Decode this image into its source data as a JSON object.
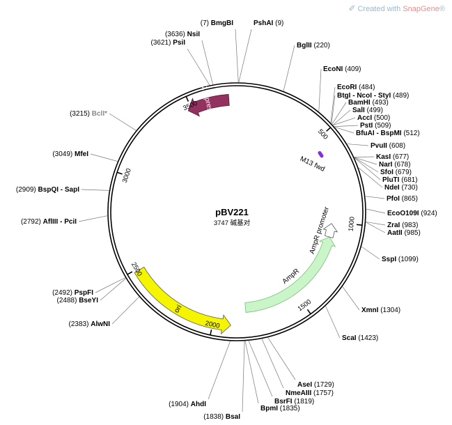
{
  "watermark": {
    "prefix": "Created with ",
    "brand": "SnapGene",
    "suffix": "®"
  },
  "plasmid": {
    "name": "pBV221",
    "length": "3747",
    "unit": "碱基对",
    "size_label": "3747 碱基对"
  },
  "colors": {
    "repressor": "#93315f",
    "ori": "#f5f500",
    "ampr": "#c9f5c9",
    "ampr_stroke": "#7bbf7b",
    "m13": "#8a2be2",
    "backbone": "#000000",
    "grey_label": "#8a8a8a",
    "watermark": "#9db8d0",
    "watermark_brand": "#f08c8c"
  },
  "ticks": [
    500,
    1000,
    1500,
    2000,
    2500,
    3000,
    3500
  ],
  "features": [
    {
      "name": "λ repressor",
      "start": 3480,
      "end": 3705,
      "strand": -1,
      "kind": "cds",
      "color": "#93315f"
    },
    {
      "name": "ori",
      "start": 1905,
      "end": 2490,
      "strand": -1,
      "kind": "ori",
      "color": "#f5f500"
    },
    {
      "name": "AmpR",
      "start": 1095,
      "end": 1820,
      "strand": -1,
      "kind": "cds",
      "color": "#c9f5c9"
    },
    {
      "name": "AmpR promoter",
      "start": 1010,
      "end": 1095,
      "strand": -1,
      "kind": "promoter",
      "color": "#ffffff"
    },
    {
      "name": "M13 fwd",
      "start": 568,
      "end": 590,
      "strand": 1,
      "kind": "primer",
      "color": "#8a2be2"
    }
  ],
  "sites": [
    {
      "name": "BmgBI",
      "pos": "(7)",
      "side": "left",
      "bp": 7
    },
    {
      "name": "PshAI",
      "pos": "(9)",
      "side": "right",
      "bp": 9
    },
    {
      "name": "NsiI",
      "pos": "(3636)",
      "side": "left",
      "bp": 3636
    },
    {
      "name": "PsiI",
      "pos": "(3621)",
      "side": "left",
      "bp": 3621
    },
    {
      "name": "BglII",
      "pos": "(220)",
      "side": "right",
      "bp": 220
    },
    {
      "name": "EcoNI",
      "pos": "(409)",
      "side": "right",
      "bp": 409
    },
    {
      "name": "EcoRI",
      "pos": "(484)",
      "side": "right",
      "bp": 484
    },
    {
      "name": "BtgI - NcoI - StyI",
      "pos": "(489)",
      "side": "right",
      "bp": 489
    },
    {
      "name": "BamHI",
      "pos": "(493)",
      "side": "right",
      "bp": 493
    },
    {
      "name": "SalI",
      "pos": "(499)",
      "side": "right",
      "bp": 499
    },
    {
      "name": "AccI",
      "pos": "(500)",
      "side": "right",
      "bp": 500
    },
    {
      "name": "PstI",
      "pos": "(509)",
      "side": "right",
      "bp": 509
    },
    {
      "name": "BfuAI - BspMI",
      "pos": "(512)",
      "side": "right",
      "bp": 512
    },
    {
      "name": "PvuII",
      "pos": "(608)",
      "side": "right",
      "bp": 608
    },
    {
      "name": "KasI",
      "pos": "(677)",
      "side": "right",
      "bp": 677
    },
    {
      "name": "NarI",
      "pos": "(678)",
      "side": "right",
      "bp": 678
    },
    {
      "name": "SfoI",
      "pos": "(679)",
      "side": "right",
      "bp": 679
    },
    {
      "name": "PluTI",
      "pos": "(681)",
      "side": "right",
      "bp": 681
    },
    {
      "name": "NdeI",
      "pos": "(730)",
      "side": "right",
      "bp": 730
    },
    {
      "name": "PfoI",
      "pos": "(865)",
      "side": "right",
      "bp": 865
    },
    {
      "name": "EcoO109I",
      "pos": "(924)",
      "side": "right",
      "bp": 924
    },
    {
      "name": "ZraI",
      "pos": "(983)",
      "side": "right",
      "bp": 983
    },
    {
      "name": "AatII",
      "pos": "(985)",
      "side": "right",
      "bp": 985
    },
    {
      "name": "SspI",
      "pos": "(1099)",
      "side": "right",
      "bp": 1099
    },
    {
      "name": "XmnI",
      "pos": "(1304)",
      "side": "right",
      "bp": 1304
    },
    {
      "name": "ScaI",
      "pos": "(1423)",
      "side": "right",
      "bp": 1423
    },
    {
      "name": "AseI",
      "pos": "(1729)",
      "side": "right",
      "bp": 1729
    },
    {
      "name": "NmeAIII",
      "pos": "(1757)",
      "side": "right",
      "bp": 1757
    },
    {
      "name": "BsrFI",
      "pos": "(1819)",
      "side": "right",
      "bp": 1819
    },
    {
      "name": "BpmI",
      "pos": "(1835)",
      "side": "right",
      "bp": 1835
    },
    {
      "name": "BsaI",
      "pos": "(1838)",
      "side": "left",
      "bp": 1838
    },
    {
      "name": "AhdI",
      "pos": "(1904)",
      "side": "left",
      "bp": 1904
    },
    {
      "name": "AlwNI",
      "pos": "(2383)",
      "side": "left",
      "bp": 2383
    },
    {
      "name": "BseYI",
      "pos": "(2488)",
      "side": "left",
      "bp": 2488
    },
    {
      "name": "PspFI",
      "pos": "(2492)",
      "side": "left",
      "bp": 2492
    },
    {
      "name": "AflIII - PciI",
      "pos": "(2792)",
      "side": "left",
      "bp": 2792
    },
    {
      "name": "BspQI - SapI",
      "pos": "(2909)",
      "side": "left",
      "bp": 2909
    },
    {
      "name": "MfeI",
      "pos": "(3049)",
      "side": "left",
      "bp": 3049
    },
    {
      "name": "BclI*",
      "pos": "(3215)",
      "side": "left",
      "bp": 3215,
      "grey": true
    }
  ]
}
